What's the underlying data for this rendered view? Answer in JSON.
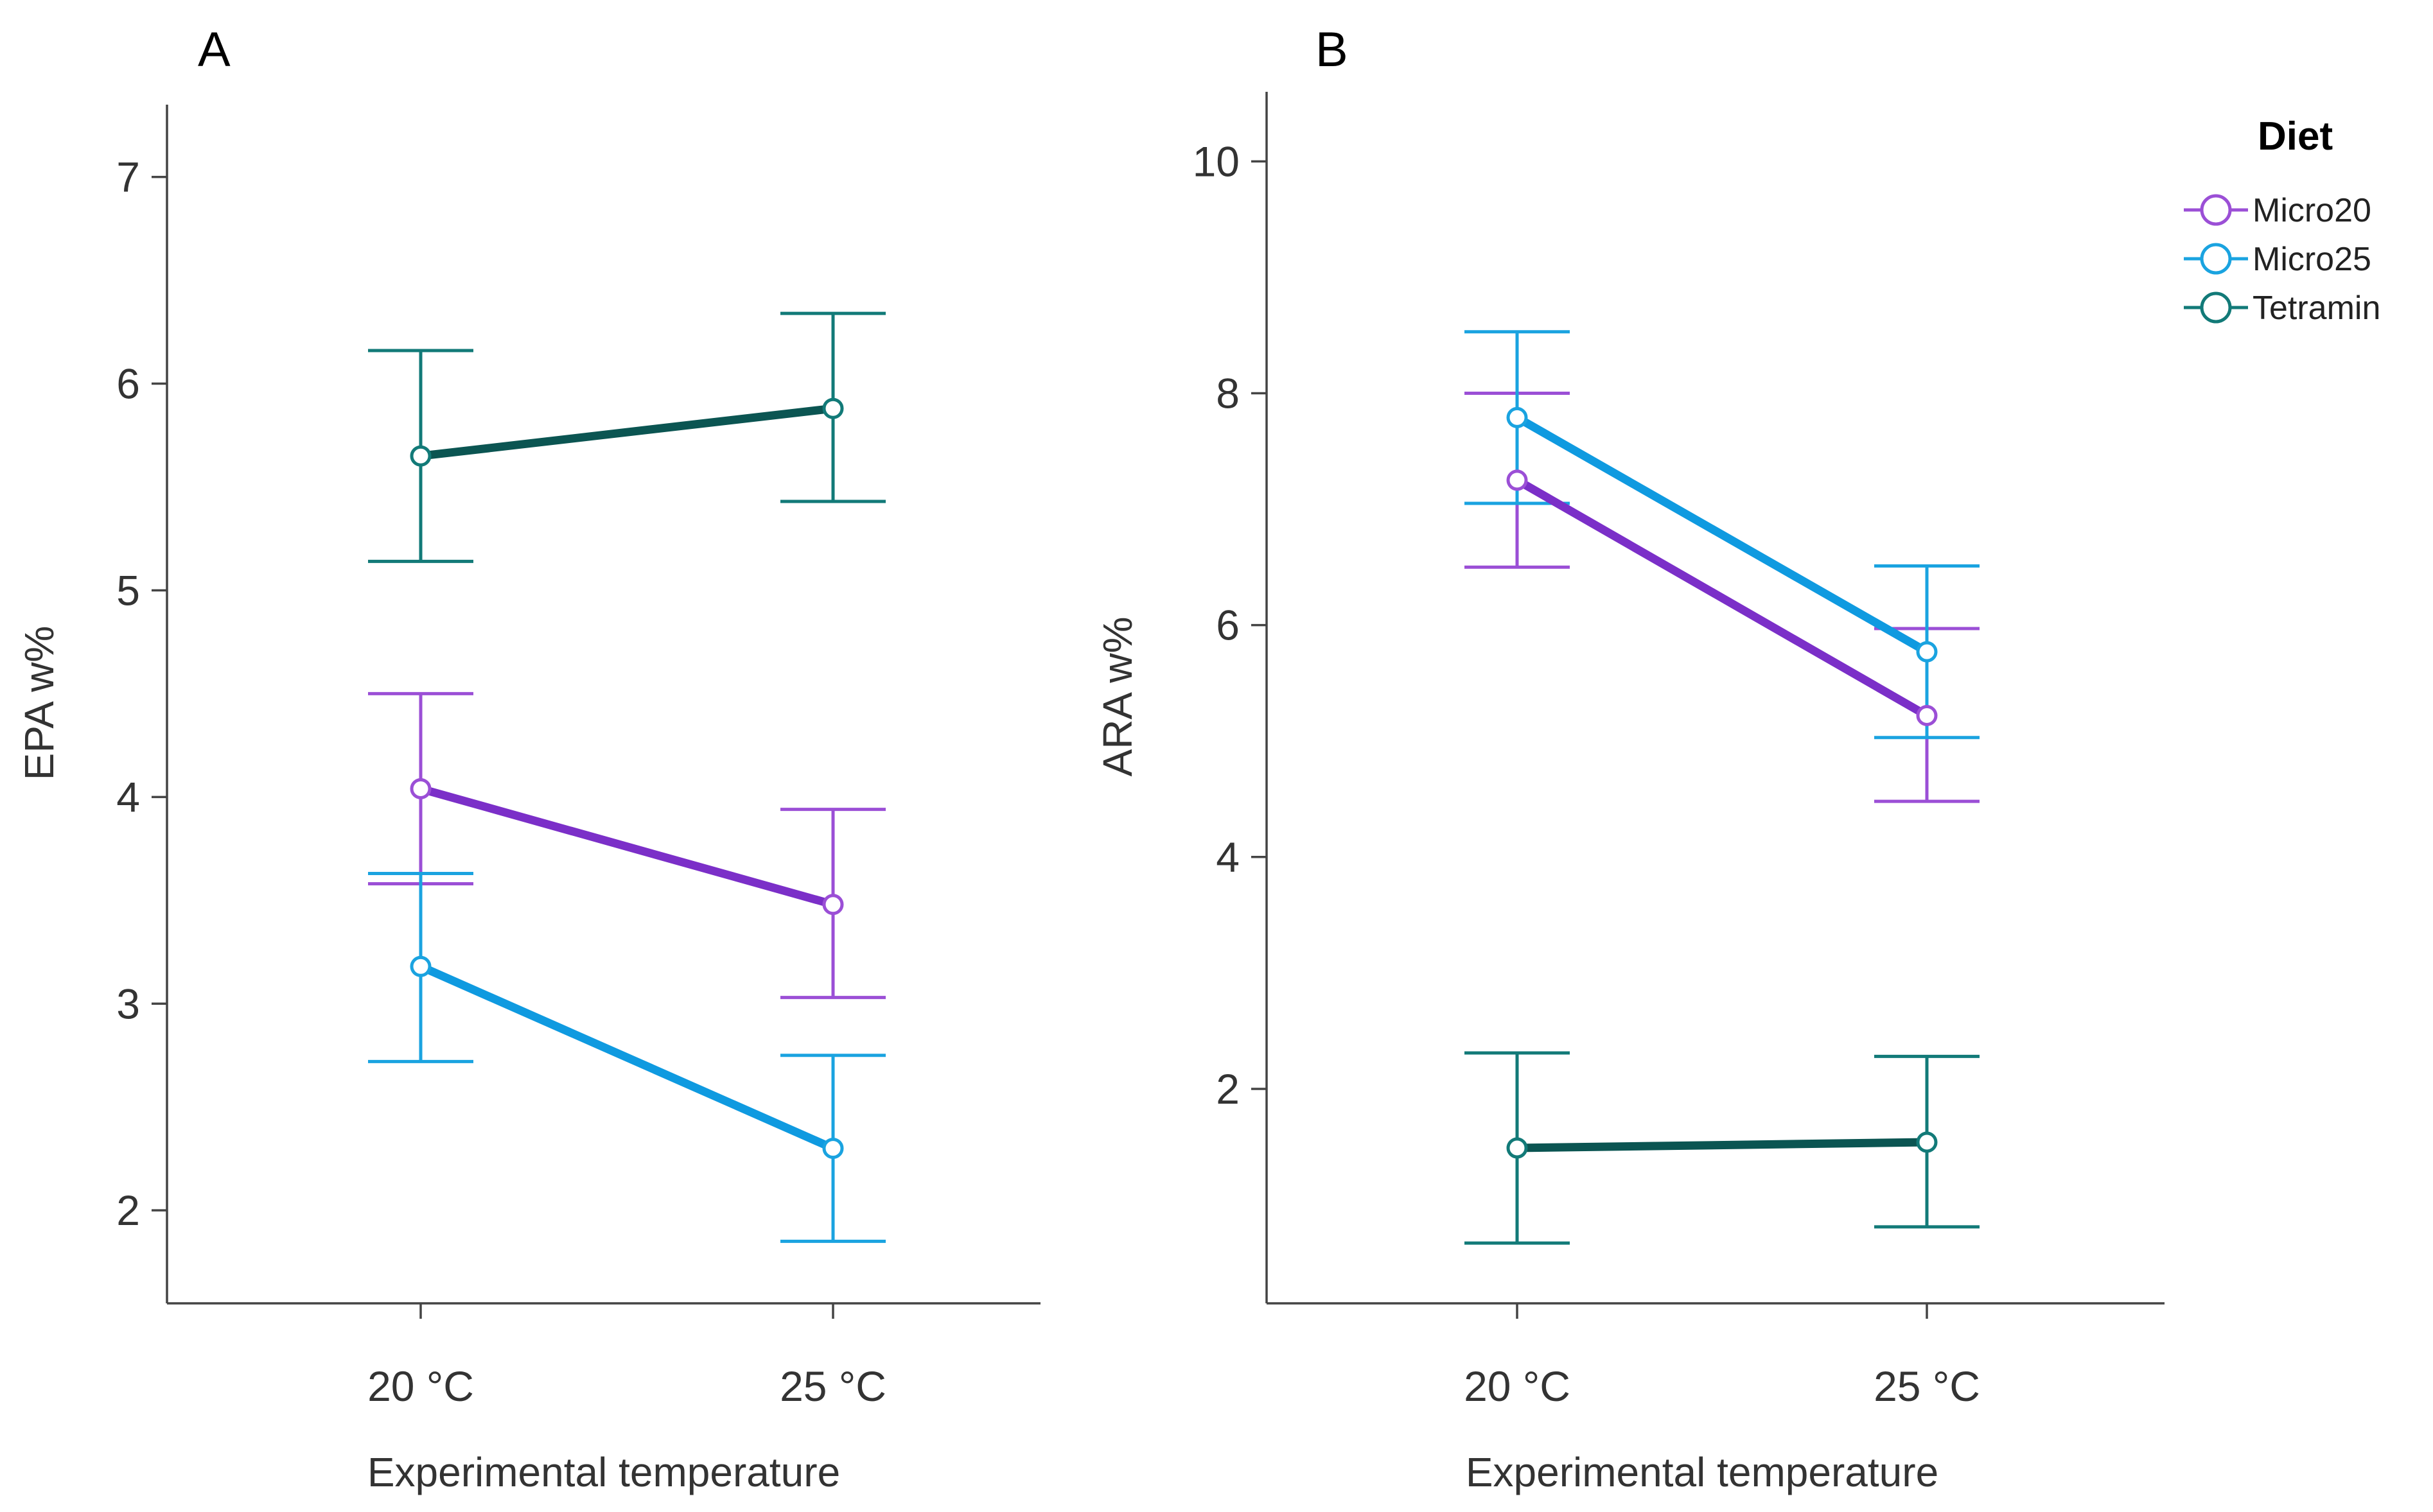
{
  "legend": {
    "title": "Diet",
    "items": [
      {
        "name": "Micro20",
        "color": "#9b4fd6",
        "line_color": "#7b2fc8"
      },
      {
        "name": "Micro25",
        "color": "#1aa3e0",
        "line_color": "#0f9ae0"
      },
      {
        "name": "Tetramin",
        "color": "#127a78",
        "line_color": "#0b5552"
      }
    ]
  },
  "chart_data": [
    {
      "type": "line",
      "panel": "A",
      "title": "",
      "xlabel": "Experimental temperature",
      "ylabel": "EPA w%",
      "categories": [
        "20 °C",
        "25 °C"
      ],
      "yticks": [
        2,
        3,
        4,
        5,
        6,
        7
      ],
      "ylim": [
        1.55,
        7.35
      ],
      "series": [
        {
          "name": "Micro20",
          "values": [
            4.04,
            3.48
          ],
          "lower": [
            3.58,
            3.03
          ],
          "upper": [
            4.5,
            3.94
          ]
        },
        {
          "name": "Micro25",
          "values": [
            3.18,
            2.3
          ],
          "lower": [
            2.72,
            1.85
          ],
          "upper": [
            3.63,
            2.75
          ]
        },
        {
          "name": "Tetramin",
          "values": [
            5.65,
            5.88
          ],
          "lower": [
            5.14,
            5.43
          ],
          "upper": [
            6.16,
            6.34
          ]
        }
      ]
    },
    {
      "type": "line",
      "panel": "B",
      "title": "",
      "xlabel": "Experimental temperature",
      "ylabel": "ARA w%",
      "categories": [
        "20 °C",
        "25 °C"
      ],
      "yticks": [
        2,
        4,
        6,
        8,
        10
      ],
      "ylim": [
        0.15,
        10.6
      ],
      "series": [
        {
          "name": "Micro20",
          "values": [
            7.25,
            5.22
          ],
          "lower": [
            6.5,
            4.48
          ],
          "upper": [
            8.0,
            5.97
          ]
        },
        {
          "name": "Micro25",
          "values": [
            7.79,
            5.77
          ],
          "lower": [
            7.05,
            5.03
          ],
          "upper": [
            8.53,
            6.51
          ]
        },
        {
          "name": "Tetramin",
          "values": [
            1.49,
            1.54
          ],
          "lower": [
            0.67,
            0.81
          ],
          "upper": [
            2.31,
            2.28
          ]
        }
      ]
    }
  ]
}
